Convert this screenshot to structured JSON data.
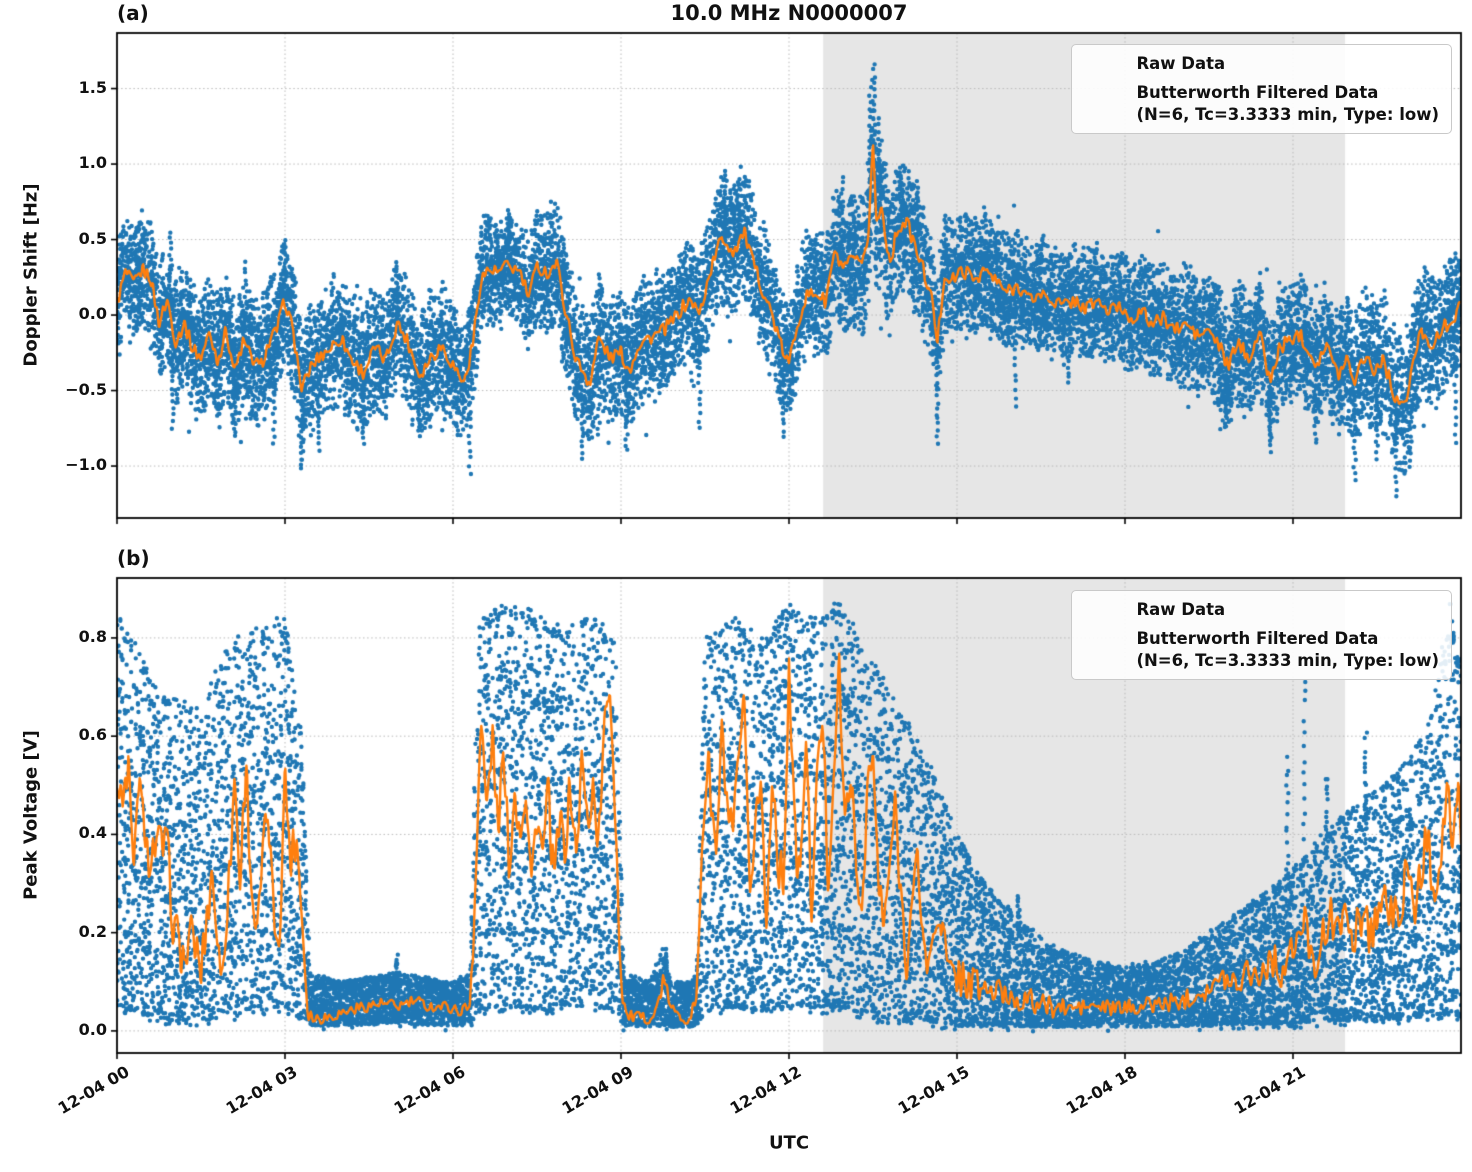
{
  "colors": {
    "raw": "#1f77b4",
    "filtered": "#ff7f0e",
    "shade": "#e6e6e6",
    "grid": "#b9b9b9",
    "text": "#111111"
  },
  "chart_data": {
    "type": "scatter+line",
    "title": "10.0 MHz N0000007",
    "xlabel": "UTC",
    "legend_position": "upper right",
    "grid": "dotted",
    "series_labels": {
      "raw": "Raw Data",
      "filtered": "Butterworth Filtered Data",
      "filtered_params": "(N=6, Tc=3.3333 min, Type: low)"
    },
    "x_axis": {
      "range_hours": [
        0,
        24
      ],
      "ticks_hours": [
        0,
        3,
        6,
        9,
        12,
        15,
        18,
        21
      ],
      "tick_labels": [
        "12-04 00",
        "12-04 03",
        "12-04 06",
        "12-04 09",
        "12-04 12",
        "12-04 15",
        "12-04 18",
        "12-04 21"
      ]
    },
    "shaded_region": {
      "start_hour": 12.61,
      "end_hour": 21.93
    },
    "panels": [
      {
        "label": "(a)",
        "ylabel": "Doppler Shift [Hz]",
        "ylim": [
          -1.344,
          1.868
        ],
        "yticks": [
          1.5,
          1.0,
          0.5,
          0.0,
          -0.5,
          -1.0
        ],
        "ytick_labels": [
          "1.5",
          "1.0",
          "0.5",
          "0.0",
          "−0.5",
          "−1.0"
        ],
        "filtered": {
          "t": [
            0,
            0.15,
            0.3,
            0.45,
            0.6,
            0.75,
            0.9,
            1.05,
            1.2,
            1.35,
            1.5,
            1.65,
            1.8,
            1.95,
            2.1,
            2.25,
            2.4,
            2.55,
            2.7,
            2.85,
            3.0,
            3.15,
            3.3,
            3.45,
            3.6,
            3.8,
            4.0,
            4.2,
            4.4,
            4.6,
            4.8,
            5.0,
            5.2,
            5.4,
            5.6,
            5.8,
            6.0,
            6.2,
            6.35,
            6.5,
            6.65,
            6.8,
            7.0,
            7.2,
            7.35,
            7.5,
            7.7,
            7.85,
            8.0,
            8.2,
            8.45,
            8.6,
            8.8,
            9.0,
            9.15,
            9.3,
            9.5,
            9.7,
            9.9,
            10.1,
            10.25,
            10.4,
            10.6,
            10.8,
            11.0,
            11.2,
            11.35,
            11.5,
            11.7,
            11.85,
            12.0,
            12.15,
            12.3,
            12.5,
            12.65,
            12.8,
            13.0,
            13.15,
            13.3,
            13.42,
            13.5,
            13.56,
            13.65,
            13.8,
            13.95,
            14.1,
            14.25,
            14.4,
            14.55,
            14.65,
            14.78,
            14.9,
            15.1,
            15.3,
            15.5,
            15.7,
            15.9,
            16.1,
            16.3,
            16.5,
            16.7,
            16.9,
            17.1,
            17.3,
            17.5,
            17.7,
            17.9,
            18.1,
            18.3,
            18.5,
            18.7,
            18.9,
            19.1,
            19.3,
            19.5,
            19.7,
            19.85,
            20.0,
            20.2,
            20.4,
            20.6,
            20.75,
            20.9,
            21.1,
            21.25,
            21.4,
            21.6,
            21.8,
            21.95,
            22.1,
            22.3,
            22.45,
            22.6,
            22.8,
            23.0,
            23.15,
            23.3,
            23.5,
            23.7,
            23.85,
            24.0
          ],
          "v": [
            0.08,
            0.28,
            0.2,
            0.3,
            0.25,
            -0.05,
            0.1,
            -0.18,
            -0.05,
            -0.22,
            -0.28,
            -0.12,
            -0.3,
            -0.1,
            -0.38,
            -0.18,
            -0.28,
            -0.35,
            -0.2,
            -0.1,
            0.1,
            -0.12,
            -0.5,
            -0.35,
            -0.28,
            -0.22,
            -0.15,
            -0.3,
            -0.38,
            -0.22,
            -0.3,
            -0.05,
            -0.18,
            -0.4,
            -0.28,
            -0.2,
            -0.33,
            -0.45,
            -0.2,
            0.25,
            0.3,
            0.28,
            0.33,
            0.28,
            0.12,
            0.32,
            0.28,
            0.35,
            0.05,
            -0.3,
            -0.45,
            -0.15,
            -0.28,
            -0.25,
            -0.37,
            -0.2,
            -0.15,
            -0.12,
            -0.05,
            0.05,
            0.1,
            0.0,
            0.3,
            0.52,
            0.42,
            0.55,
            0.35,
            0.2,
            0.0,
            -0.2,
            -0.33,
            -0.05,
            0.12,
            0.15,
            0.08,
            0.4,
            0.3,
            0.38,
            0.3,
            0.55,
            1.17,
            0.6,
            0.72,
            0.35,
            0.58,
            0.62,
            0.45,
            0.3,
            0.1,
            -0.18,
            0.28,
            0.22,
            0.3,
            0.24,
            0.3,
            0.22,
            0.15,
            0.2,
            0.1,
            0.14,
            0.1,
            0.06,
            0.1,
            0.04,
            0.1,
            0.02,
            0.06,
            -0.02,
            0.02,
            -0.06,
            -0.02,
            -0.1,
            -0.06,
            -0.14,
            -0.1,
            -0.22,
            -0.35,
            -0.18,
            -0.28,
            -0.12,
            -0.45,
            -0.22,
            -0.18,
            -0.12,
            -0.2,
            -0.32,
            -0.2,
            -0.4,
            -0.28,
            -0.42,
            -0.25,
            -0.38,
            -0.28,
            -0.52,
            -0.62,
            -0.3,
            -0.1,
            -0.2,
            -0.08,
            -0.02,
            0.05
          ]
        },
        "raw_band": {
          "t": [
            0,
            2,
            4,
            6,
            7,
            8,
            10,
            11,
            12,
            13,
            13.5,
            14,
            15,
            16,
            17,
            18,
            19,
            20,
            21,
            22,
            23,
            24
          ],
          "halfwidth": [
            0.26,
            0.3,
            0.3,
            0.3,
            0.24,
            0.3,
            0.27,
            0.32,
            0.28,
            0.3,
            0.38,
            0.3,
            0.28,
            0.26,
            0.25,
            0.25,
            0.27,
            0.28,
            0.28,
            0.3,
            0.32,
            0.28
          ]
        },
        "outlier_columns": [
          [
            0.95,
            0.55
          ],
          [
            2.3,
            0.35
          ],
          [
            3.0,
            0.5
          ],
          [
            5.0,
            0.35
          ],
          [
            7.0,
            0.7
          ],
          [
            10.85,
            0.95
          ],
          [
            11.1,
            0.88
          ],
          [
            12.95,
            0.92
          ],
          [
            13.45,
            1.5
          ],
          [
            13.52,
            1.67
          ],
          [
            13.6,
            1.3
          ],
          [
            14.0,
            0.95
          ],
          [
            14.3,
            0.88
          ],
          [
            1.0,
            -0.75
          ],
          [
            2.1,
            -0.8
          ],
          [
            2.8,
            -0.85
          ],
          [
            3.3,
            -1.02
          ],
          [
            3.6,
            -0.9
          ],
          [
            4.4,
            -0.85
          ],
          [
            5.4,
            -0.8
          ],
          [
            6.3,
            -1.05
          ],
          [
            8.3,
            -0.95
          ],
          [
            8.6,
            -0.8
          ],
          [
            9.1,
            -0.9
          ],
          [
            10.4,
            -0.75
          ],
          [
            11.9,
            -0.8
          ],
          [
            14.65,
            -0.85
          ],
          [
            16.05,
            -0.6
          ],
          [
            17.0,
            -0.45
          ],
          [
            19.8,
            -0.75
          ],
          [
            20.6,
            -0.9
          ],
          [
            21.4,
            -0.85
          ],
          [
            22.1,
            -1.1
          ],
          [
            22.5,
            -0.95
          ],
          [
            22.85,
            -1.2
          ],
          [
            23.1,
            -1.0
          ],
          [
            23.9,
            -0.85
          ]
        ]
      },
      {
        "label": "(b)",
        "ylabel": "Peak Voltage [V]",
        "ylim": [
          -0.045,
          0.922
        ],
        "yticks": [
          0.8,
          0.6,
          0.4,
          0.2,
          0.0
        ],
        "ytick_labels": [
          "0.8",
          "0.6",
          "0.4",
          "0.2",
          "0.0"
        ],
        "filtered": {
          "t": [
            0,
            0.1,
            0.2,
            0.3,
            0.4,
            0.5,
            0.7,
            0.9,
            1.0,
            1.2,
            1.35,
            1.5,
            1.7,
            1.85,
            2.0,
            2.1,
            2.2,
            2.3,
            2.4,
            2.5,
            2.6,
            2.7,
            2.8,
            2.9,
            3.0,
            3.1,
            3.2,
            3.3,
            3.4,
            3.5,
            3.8,
            4.1,
            4.4,
            4.7,
            5.0,
            5.3,
            5.6,
            5.9,
            6.1,
            6.3,
            6.4,
            6.5,
            6.6,
            6.7,
            6.8,
            6.9,
            7.0,
            7.1,
            7.2,
            7.3,
            7.4,
            7.5,
            7.6,
            7.7,
            7.8,
            7.9,
            8.0,
            8.1,
            8.2,
            8.3,
            8.4,
            8.5,
            8.6,
            8.7,
            8.8,
            8.9,
            9.0,
            9.1,
            9.4,
            9.6,
            9.75,
            9.9,
            10.0,
            10.2,
            10.35,
            10.45,
            10.55,
            10.7,
            10.8,
            10.9,
            11.0,
            11.1,
            11.2,
            11.3,
            11.4,
            11.5,
            11.6,
            11.7,
            11.8,
            11.9,
            12.0,
            12.1,
            12.2,
            12.3,
            12.4,
            12.5,
            12.6,
            12.7,
            12.8,
            12.9,
            13.0,
            13.1,
            13.2,
            13.3,
            13.4,
            13.5,
            13.6,
            13.7,
            13.8,
            13.9,
            14.0,
            14.1,
            14.2,
            14.3,
            14.4,
            14.5,
            14.6,
            14.7,
            14.8,
            14.9,
            15.0,
            15.2,
            15.4,
            15.6,
            15.8,
            16.0,
            16.3,
            16.6,
            17.0,
            17.4,
            17.8,
            18.2,
            18.6,
            19.0,
            19.3,
            19.6,
            19.8,
            20.0,
            20.2,
            20.4,
            20.6,
            20.8,
            21.0,
            21.2,
            21.4,
            21.6,
            21.8,
            22.0,
            22.2,
            22.4,
            22.6,
            22.8,
            23.0,
            23.2,
            23.4,
            23.5,
            23.65,
            23.75,
            23.85,
            23.95,
            24.0
          ],
          "v": [
            0.5,
            0.45,
            0.55,
            0.3,
            0.55,
            0.35,
            0.38,
            0.37,
            0.22,
            0.14,
            0.2,
            0.12,
            0.33,
            0.1,
            0.3,
            0.52,
            0.3,
            0.55,
            0.3,
            0.18,
            0.35,
            0.45,
            0.22,
            0.2,
            0.52,
            0.35,
            0.4,
            0.25,
            0.05,
            0.025,
            0.03,
            0.04,
            0.05,
            0.055,
            0.05,
            0.06,
            0.05,
            0.05,
            0.04,
            0.05,
            0.3,
            0.63,
            0.45,
            0.6,
            0.42,
            0.55,
            0.35,
            0.48,
            0.42,
            0.5,
            0.3,
            0.45,
            0.35,
            0.48,
            0.3,
            0.42,
            0.38,
            0.5,
            0.35,
            0.55,
            0.42,
            0.5,
            0.38,
            0.6,
            0.72,
            0.45,
            0.1,
            0.03,
            0.025,
            0.03,
            0.1,
            0.05,
            0.03,
            0.025,
            0.06,
            0.4,
            0.55,
            0.35,
            0.6,
            0.45,
            0.38,
            0.55,
            0.65,
            0.25,
            0.45,
            0.5,
            0.2,
            0.55,
            0.35,
            0.3,
            0.75,
            0.4,
            0.3,
            0.6,
            0.25,
            0.5,
            0.65,
            0.3,
            0.55,
            0.73,
            0.4,
            0.55,
            0.3,
            0.25,
            0.5,
            0.55,
            0.3,
            0.2,
            0.35,
            0.45,
            0.28,
            0.15,
            0.25,
            0.35,
            0.18,
            0.12,
            0.22,
            0.25,
            0.15,
            0.1,
            0.12,
            0.1,
            0.09,
            0.08,
            0.075,
            0.07,
            0.06,
            0.05,
            0.045,
            0.05,
            0.045,
            0.05,
            0.055,
            0.06,
            0.08,
            0.09,
            0.11,
            0.1,
            0.13,
            0.11,
            0.15,
            0.12,
            0.16,
            0.22,
            0.15,
            0.2,
            0.26,
            0.18,
            0.24,
            0.2,
            0.28,
            0.22,
            0.3,
            0.26,
            0.4,
            0.3,
            0.35,
            0.52,
            0.35,
            0.47,
            0.4
          ]
        },
        "raw_band": {
          "t": [
            0,
            0.3,
            0.6,
            1.0,
            1.5,
            2.0,
            2.5,
            3.0,
            3.3,
            3.45,
            4.0,
            5.0,
            6.0,
            6.3,
            6.45,
            7.0,
            7.5,
            8.0,
            8.5,
            8.9,
            9.05,
            9.5,
            9.75,
            9.9,
            10.2,
            10.35,
            10.5,
            11.0,
            11.5,
            12.0,
            12.5,
            12.9,
            13.3,
            13.7,
            14.0,
            14.5,
            15.0,
            15.5,
            16.0,
            16.5,
            17.0,
            17.5,
            18.0,
            18.5,
            19.0,
            19.5,
            20.0,
            20.5,
            21.0,
            21.5,
            22.0,
            22.5,
            23.0,
            23.4,
            23.8,
            24.0
          ],
          "lo": [
            0.05,
            0.04,
            0.03,
            0.02,
            0.02,
            0.03,
            0.04,
            0.05,
            0.02,
            0.01,
            0.01,
            0.015,
            0.01,
            0.01,
            0.04,
            0.05,
            0.04,
            0.05,
            0.05,
            0.04,
            0.01,
            0.008,
            0.01,
            0.008,
            0.008,
            0.01,
            0.04,
            0.05,
            0.04,
            0.05,
            0.04,
            0.05,
            0.03,
            0.02,
            0.02,
            0.015,
            0.01,
            0.01,
            0.01,
            0.008,
            0.008,
            0.008,
            0.008,
            0.008,
            0.01,
            0.01,
            0.012,
            0.015,
            0.015,
            0.02,
            0.02,
            0.02,
            0.025,
            0.03,
            0.03,
            0.03
          ],
          "hi": [
            0.85,
            0.8,
            0.72,
            0.68,
            0.66,
            0.8,
            0.82,
            0.85,
            0.6,
            0.12,
            0.1,
            0.12,
            0.1,
            0.12,
            0.85,
            0.88,
            0.85,
            0.82,
            0.85,
            0.8,
            0.12,
            0.1,
            0.17,
            0.1,
            0.1,
            0.12,
            0.8,
            0.85,
            0.8,
            0.88,
            0.85,
            0.88,
            0.8,
            0.72,
            0.66,
            0.55,
            0.4,
            0.3,
            0.24,
            0.19,
            0.16,
            0.14,
            0.13,
            0.14,
            0.16,
            0.2,
            0.24,
            0.28,
            0.33,
            0.4,
            0.45,
            0.5,
            0.55,
            0.62,
            0.87,
            0.75
          ]
        },
        "outlier_columns": [
          [
            5.0,
            0.15
          ],
          [
            9.8,
            0.17
          ],
          [
            15.2,
            0.35
          ],
          [
            16.1,
            0.28
          ],
          [
            20.9,
            0.55
          ],
          [
            21.2,
            0.72
          ],
          [
            21.6,
            0.52
          ],
          [
            22.3,
            0.6
          ],
          [
            23.85,
            0.8
          ],
          [
            23.95,
            0.75
          ]
        ]
      }
    ]
  }
}
